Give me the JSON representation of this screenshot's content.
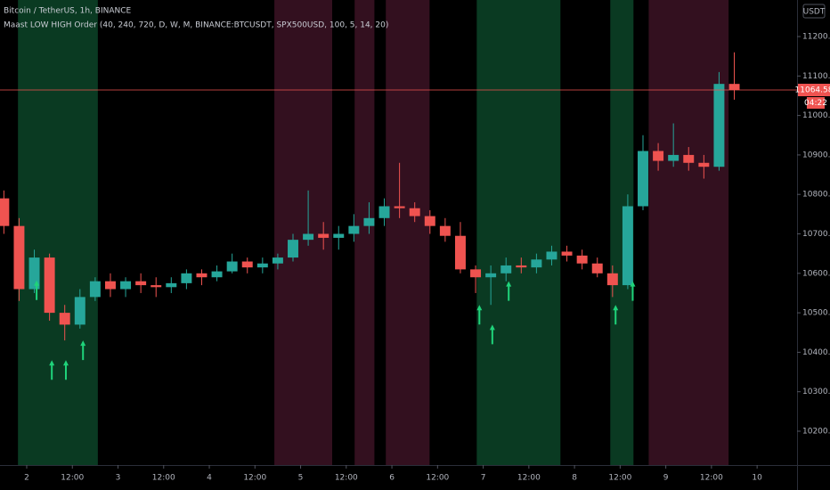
{
  "chart_data": {
    "type": "candlestick",
    "title": "Bitcoin / TetherUS, 1h, BINANCE",
    "indicator": "Maast LOW HIGH Order (40, 240, 720, D, W, M, BINANCE:BTCUSDT, SPX500USD, 100, 5, 14, 20)",
    "currency": "USDT",
    "up_color": "#26a69a",
    "down_color": "#ef5350",
    "xlim": [
      -7.02,
      202.5
    ],
    "ylim": [
      10114.2,
      11292.6
    ],
    "xticks": [
      {
        "value": 0,
        "label": "2"
      },
      {
        "value": 12,
        "label": "12:00"
      },
      {
        "value": 24,
        "label": "3"
      },
      {
        "value": 36,
        "label": "12:00"
      },
      {
        "value": 48,
        "label": "4"
      },
      {
        "value": 60,
        "label": "12:00"
      },
      {
        "value": 72,
        "label": "5"
      },
      {
        "value": 84,
        "label": "12:00"
      },
      {
        "value": 96,
        "label": "6"
      },
      {
        "value": 108,
        "label": "12:00"
      },
      {
        "value": 120,
        "label": "7"
      },
      {
        "value": 132,
        "label": "12:00"
      },
      {
        "value": 144,
        "label": "8"
      },
      {
        "value": 156,
        "label": "12:00"
      },
      {
        "value": 168,
        "label": "9"
      },
      {
        "value": 180,
        "label": "12:00"
      },
      {
        "value": 192,
        "label": "10"
      }
    ],
    "yticks": [
      {
        "value": 10200,
        "label": "10200.00"
      },
      {
        "value": 10300,
        "label": "10300.00"
      },
      {
        "value": 10400,
        "label": "10400.00"
      },
      {
        "value": 10500,
        "label": "10500.00"
      },
      {
        "value": 10600,
        "label": "10600.00"
      },
      {
        "value": 10700,
        "label": "10700.00"
      },
      {
        "value": 10800,
        "label": "10800.00"
      },
      {
        "value": 10900,
        "label": "10900.00"
      },
      {
        "value": 11000,
        "label": "11000.00"
      },
      {
        "value": 11100,
        "label": "11100.00"
      },
      {
        "value": 11200,
        "label": "11200.00"
      }
    ],
    "bands": [
      {
        "start": -2.3,
        "end": 18.7,
        "color": "#0a3a22"
      },
      {
        "start": 65.1,
        "end": 80.3,
        "color": "#33101f"
      },
      {
        "start": 86.2,
        "end": 91.4,
        "color": "#33101f"
      },
      {
        "start": 94.4,
        "end": 105.9,
        "color": "#33101f"
      },
      {
        "start": 118.3,
        "end": 140.3,
        "color": "#0a3a22"
      },
      {
        "start": 153.4,
        "end": 159.5,
        "color": "#0a3a22"
      },
      {
        "start": 163.5,
        "end": 184.5,
        "color": "#33101f"
      }
    ],
    "x": [
      -6,
      -2,
      2,
      6,
      10,
      14,
      18,
      22,
      26,
      30,
      34,
      38,
      42,
      46,
      50,
      54,
      58,
      62,
      66,
      70,
      74,
      78,
      82,
      86,
      90,
      94,
      98,
      102,
      106,
      110,
      114,
      118,
      122,
      126,
      130,
      134,
      138,
      142,
      146,
      150,
      154,
      158,
      162,
      166,
      170,
      174,
      178,
      182,
      186
    ],
    "open": [
      10790,
      10720,
      10560,
      10640,
      10500,
      10470,
      10540,
      10580,
      10560,
      10580,
      10570,
      10565,
      10575,
      10600,
      10590,
      10605,
      10630,
      10615,
      10625,
      10640,
      10685,
      10700,
      10690,
      10700,
      10720,
      10740,
      10770,
      10765,
      10745,
      10720,
      10695,
      10610,
      10590,
      10600,
      10620,
      10615,
      10635,
      10655,
      10645,
      10625,
      10600,
      10570,
      10770,
      10910,
      10885,
      10900,
      10880,
      10870,
      11080
    ],
    "high": [
      10810,
      10740,
      10660,
      10650,
      10520,
      10560,
      10590,
      10600,
      10590,
      10600,
      10590,
      10590,
      10610,
      10610,
      10620,
      10650,
      10640,
      10640,
      10650,
      10700,
      10810,
      10730,
      10720,
      10750,
      10780,
      10790,
      10880,
      10780,
      10760,
      10740,
      10730,
      10620,
      10620,
      10640,
      10640,
      10650,
      10670,
      10670,
      10660,
      10640,
      10620,
      10800,
      10950,
      10930,
      10980,
      10920,
      10900,
      11110,
      11160
    ],
    "low": [
      10700,
      10530,
      10550,
      10480,
      10430,
      10460,
      10530,
      10540,
      10540,
      10550,
      10540,
      10550,
      10560,
      10570,
      10580,
      10600,
      10600,
      10600,
      10610,
      10630,
      10670,
      10660,
      10660,
      10680,
      10700,
      10720,
      10740,
      10730,
      10700,
      10680,
      10600,
      10550,
      10520,
      10580,
      10600,
      10600,
      10620,
      10630,
      10610,
      10590,
      10540,
      10560,
      10760,
      10860,
      10870,
      10860,
      10840,
      10860,
      11040
    ],
    "close": [
      10720,
      10560,
      10640,
      10500,
      10470,
      10540,
      10580,
      10560,
      10580,
      10570,
      10565,
      10575,
      10600,
      10590,
      10605,
      10630,
      10615,
      10625,
      10640,
      10685,
      10700,
      10690,
      10700,
      10720,
      10740,
      10770,
      10765,
      10745,
      10720,
      10695,
      10610,
      10590,
      10600,
      10620,
      10615,
      10635,
      10655,
      10645,
      10625,
      10600,
      10570,
      10770,
      10910,
      10885,
      10900,
      10880,
      10870,
      11080,
      11064.58
    ],
    "signals": {
      "color": "#1fd37a",
      "x": [
        2.6,
        6.6,
        10.3,
        14.8,
        119,
        122.4,
        126.7,
        154.8,
        159.3
      ],
      "values": [
        10582,
        10380,
        10380,
        10430,
        10520,
        10470,
        10580,
        10520,
        10580
      ]
    },
    "last_price": {
      "value": 11064.58,
      "label": "11064.58"
    },
    "countdown": "04:22"
  }
}
